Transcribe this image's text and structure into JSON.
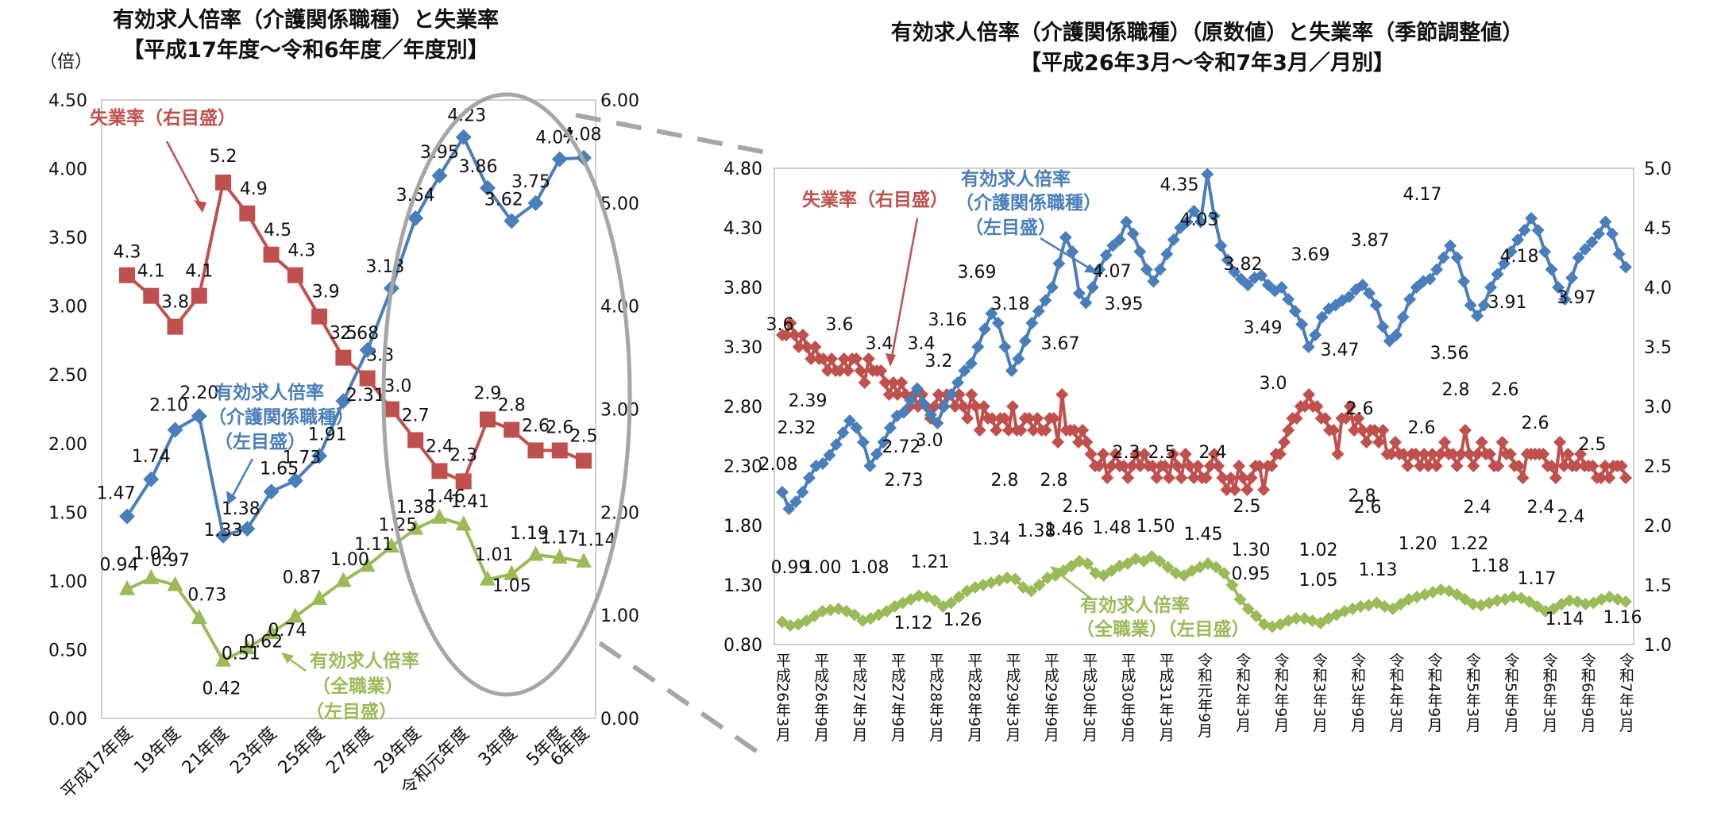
{
  "colors": {
    "unemployment": "#c0504d",
    "care": "#4a7ebb",
    "all": "#9bbb59",
    "ellipse": "#a6a6a6"
  },
  "chart_data": [
    {
      "type": "line",
      "title": [
        "有効求人倍率（介護関係職種）と失業率",
        "【平成17年度～令和6年度／年度別】"
      ],
      "left_axis_unit": "（倍）",
      "y_left": {
        "min": 0,
        "max": 4.5,
        "ticks": [
          "0.00",
          "0.50",
          "1.00",
          "1.50",
          "2.00",
          "2.50",
          "3.00",
          "3.50",
          "4.00",
          "4.50"
        ]
      },
      "y_right": {
        "min": 0,
        "max": 6,
        "ticks": [
          "0.00",
          "1.00",
          "2.00",
          "3.00",
          "4.00",
          "5.00",
          "6.00"
        ]
      },
      "x_labels": [
        "平成17年度",
        "19年度",
        "21年度",
        "23年度",
        "25年度",
        "27年度",
        "29年度",
        "令和元年度",
        "3年度",
        "5年度",
        "6年度"
      ],
      "series": [
        {
          "name": "失業率",
          "axis": "right",
          "values": [
            4.3,
            4.1,
            3.8,
            4.1,
            5.2,
            4.9,
            4.5,
            4.3,
            3.9,
            3.5,
            3.3,
            3.0,
            2.7,
            2.4,
            2.3,
            2.9,
            2.8,
            2.6,
            2.6,
            2.5
          ],
          "labels": [
            "4.3",
            "4.1",
            "3.8",
            "4.1",
            "5.2",
            "4.9",
            "4.5",
            "4.3",
            "3.9",
            "3.5",
            "3.3",
            "3.0",
            "2.7",
            "2.4",
            "2.3",
            "2.9",
            "2.8",
            "2.6",
            "2.6",
            "2.5"
          ]
        },
        {
          "name": "有効求人倍率（介護関係職種）",
          "axis": "left",
          "values": [
            1.47,
            1.74,
            2.1,
            2.2,
            1.33,
            1.38,
            1.65,
            1.73,
            1.91,
            2.31,
            2.68,
            3.13,
            3.64,
            3.95,
            4.23,
            3.86,
            3.62,
            3.75,
            4.07,
            4.08
          ],
          "labels": [
            "1.47",
            "1.74",
            "2.10",
            "2.20",
            "1.33",
            "1.38",
            "1.65",
            "1.73",
            "1.91",
            "2.31",
            "2.68",
            "3.13",
            "3.64",
            "3.95",
            "4.23",
            "3.86",
            "3.62",
            "3.75",
            "4.07",
            "4.08"
          ]
        },
        {
          "name": "有効求人倍率（全職業）",
          "axis": "left",
          "values": [
            0.94,
            1.02,
            0.97,
            0.73,
            0.42,
            0.51,
            0.62,
            0.74,
            0.87,
            1.0,
            1.11,
            1.25,
            1.38,
            1.46,
            1.41,
            1.01,
            1.05,
            1.19,
            1.17,
            1.14
          ],
          "labels": [
            "0.94",
            "1.02",
            "0.97",
            "0.73",
            "0.42",
            "0.51",
            "0.62",
            "0.74",
            "0.87",
            "1.00",
            "1.11",
            "1.25",
            "1.38",
            "1.46",
            "1.41",
            "1.01",
            "1.05",
            "1.19",
            "1.17",
            "1.14"
          ]
        }
      ],
      "callouts": {
        "unemployment": "失業率（右目盛）",
        "care": [
          "有効求人倍率",
          "（介護関係職種）",
          "（左目盛）"
        ],
        "all": [
          "有効求人倍率",
          "（全職業）",
          "（左目盛）"
        ]
      }
    },
    {
      "type": "line",
      "title": [
        "有効求人倍率（介護関係職種）（原数値）と失業率（季節調整値）",
        "【平成26年3月～令和7年3月／月別】"
      ],
      "y_left": {
        "min": 0.8,
        "max": 4.8,
        "ticks": [
          "0.80",
          "1.30",
          "1.80",
          "2.30",
          "2.80",
          "3.30",
          "3.80",
          "4.30",
          "4.80"
        ]
      },
      "y_right": {
        "min": 1.0,
        "max": 5.0,
        "ticks": [
          "1.0",
          "1.5",
          "2.0",
          "2.5",
          "3.0",
          "3.5",
          "4.0",
          "4.5",
          "5.0"
        ]
      },
      "x_labels": [
        "平成26年3月",
        "平成26年9月",
        "平成27年3月",
        "平成27年9月",
        "平成28年3月",
        "平成28年9月",
        "平成29年3月",
        "平成29年9月",
        "平成30年3月",
        "平成30年9月",
        "平成31年3月",
        "令和元年9月",
        "令和2年3月",
        "令和2年9月",
        "令和3年3月",
        "令和3年9月",
        "令和4年3月",
        "令和4年9月",
        "令和5年3月",
        "令和5年9月",
        "令和6年3月",
        "令和6年9月",
        "令和7年3月"
      ],
      "series": [
        {
          "name": "失業率",
          "axis": "right",
          "values": [
            3.6,
            3.6,
            3.7,
            3.6,
            3.5,
            3.6,
            3.5,
            3.4,
            3.5,
            3.4,
            3.4,
            3.3,
            3.4,
            3.3,
            3.3,
            3.4,
            3.3,
            3.4,
            3.4,
            3.3,
            3.2,
            3.4,
            3.3,
            3.3,
            3.3,
            3.2,
            3.1,
            3.2,
            3.1,
            3.2,
            3.1,
            3.0,
            3.1,
            3.0,
            3.1,
            3.0,
            2.9,
            3.0,
            3.1,
            3.0,
            3.1,
            3.1,
            3.0,
            3.1,
            3.0,
            2.9,
            3.1,
            3.0,
            2.8,
            3.0,
            2.9,
            2.9,
            2.8,
            2.9,
            2.9,
            2.8,
            3.0,
            2.8,
            2.8,
            2.9,
            2.9,
            2.8,
            2.9,
            2.8,
            2.8,
            2.9,
            2.9,
            2.7,
            3.1,
            2.8,
            2.8,
            2.8,
            2.7,
            2.8,
            2.7,
            2.6,
            2.5,
            2.5,
            2.6,
            2.4,
            2.5,
            2.6,
            2.5,
            2.5,
            2.4,
            2.5,
            2.6,
            2.5,
            2.6,
            2.5,
            2.5,
            2.4,
            2.5,
            2.5,
            2.4,
            2.6,
            2.5,
            2.4,
            2.6,
            2.5,
            2.4,
            2.5,
            2.4,
            2.4,
            2.5,
            2.6,
            2.5,
            2.4,
            2.3,
            2.4,
            2.3,
            2.5,
            2.4,
            2.3,
            2.4,
            2.5,
            2.5,
            2.3,
            2.5,
            2.5,
            2.6,
            2.6,
            2.7,
            2.8,
            2.9,
            2.9,
            3.0,
            3.0,
            3.1,
            3.0,
            3.0,
            2.9,
            2.9,
            2.8,
            2.8,
            2.6,
            2.9,
            2.9,
            3.0,
            2.8,
            2.9,
            2.8,
            2.7,
            2.8,
            2.8,
            2.7,
            2.8,
            2.6,
            2.6,
            2.7,
            2.6,
            2.6,
            2.5,
            2.6,
            2.6,
            2.5,
            2.6,
            2.5,
            2.6,
            2.5,
            2.6,
            2.7,
            2.6,
            2.6,
            2.5,
            2.6,
            2.8,
            2.6,
            2.5,
            2.6,
            2.7,
            2.6,
            2.6,
            2.5,
            2.5,
            2.7,
            2.6,
            2.6,
            2.5,
            2.5,
            2.4,
            2.6,
            2.6,
            2.6,
            2.6,
            2.6,
            2.5,
            2.5,
            2.4,
            2.7,
            2.5,
            2.6,
            2.5,
            2.5,
            2.6,
            2.5,
            2.5,
            2.5,
            2.4,
            2.4,
            2.5,
            2.4,
            2.5,
            2.5,
            2.5,
            2.4
          ],
          "annotations": [
            "3.6",
            "3.6",
            "3.4",
            "3.4",
            "3.2",
            "3.0",
            "2.8",
            "2.8",
            "2.5",
            "2.3",
            "2.5",
            "2.4",
            "2.5",
            "3.0",
            "2.8",
            "2.6",
            "2.6",
            "2.6",
            "2.8",
            "2.6",
            "2.4",
            "2.4",
            "2.6",
            "2.5",
            "2.4"
          ]
        },
        {
          "name": "有効求人倍率（介護関係職種）",
          "axis": "left",
          "values": [
            2.08,
            1.94,
            2.0,
            2.08,
            2.2,
            2.3,
            2.32,
            2.39,
            2.48,
            2.58,
            2.68,
            2.62,
            2.5,
            2.3,
            2.4,
            2.5,
            2.62,
            2.72,
            2.75,
            2.85,
            2.95,
            2.82,
            2.73,
            2.66,
            2.8,
            2.9,
            3.0,
            3.1,
            3.16,
            3.3,
            3.45,
            3.58,
            3.5,
            3.3,
            3.1,
            3.2,
            3.35,
            3.5,
            3.6,
            3.69,
            3.8,
            4.0,
            4.22,
            4.1,
            3.75,
            3.67,
            3.8,
            3.95,
            4.07,
            4.15,
            4.2,
            4.35,
            4.25,
            4.1,
            3.95,
            3.85,
            3.95,
            4.08,
            4.2,
            4.3,
            4.35,
            4.44,
            4.35,
            4.75,
            4.4,
            4.15,
            4.03,
            3.93,
            3.87,
            3.82,
            3.88,
            3.9,
            3.82,
            3.77,
            3.8,
            3.7,
            3.6,
            3.49,
            3.3,
            3.4,
            3.55,
            3.62,
            3.65,
            3.69,
            3.72,
            3.78,
            3.82,
            3.75,
            3.65,
            3.47,
            3.35,
            3.4,
            3.55,
            3.7,
            3.8,
            3.85,
            3.87,
            3.95,
            4.05,
            4.15,
            4.05,
            3.85,
            3.65,
            3.56,
            3.65,
            3.8,
            3.91,
            4.0,
            4.1,
            4.2,
            4.28,
            4.38,
            4.28,
            4.1,
            3.95,
            3.8,
            3.7,
            3.88,
            4.05,
            4.12,
            4.18,
            4.25,
            4.35,
            4.25,
            4.08,
            3.97
          ],
          "annotations": [
            "2.08",
            "2.32",
            "2.39",
            "2.72",
            "2.73",
            "3.16",
            "3.18",
            "3.69",
            "3.67",
            "4.07",
            "3.95",
            "4.35",
            "4.03",
            "3.82",
            "3.49",
            "3.69",
            "3.47",
            "3.87",
            "3.56",
            "4.17",
            "3.91",
            "4.18",
            "3.97"
          ]
        },
        {
          "name": "有効求人倍率（全職業）",
          "axis": "left",
          "values": [
            0.99,
            0.96,
            0.97,
            1.0,
            1.04,
            1.08,
            1.09,
            1.1,
            1.08,
            1.05,
            1.0,
            1.02,
            1.05,
            1.08,
            1.12,
            1.15,
            1.18,
            1.21,
            1.2,
            1.17,
            1.12,
            1.15,
            1.2,
            1.25,
            1.28,
            1.3,
            1.32,
            1.34,
            1.36,
            1.35,
            1.28,
            1.25,
            1.3,
            1.36,
            1.38,
            1.42,
            1.46,
            1.5,
            1.48,
            1.4,
            1.38,
            1.42,
            1.46,
            1.48,
            1.52,
            1.5,
            1.54,
            1.5,
            1.45,
            1.4,
            1.38,
            1.42,
            1.45,
            1.48,
            1.45,
            1.4,
            1.3,
            1.18,
            1.1,
            1.04,
            0.97,
            0.95,
            0.97,
            1.0,
            1.02,
            1.02,
            1.0,
            0.98,
            1.02,
            1.05,
            1.08,
            1.1,
            1.12,
            1.13,
            1.15,
            1.12,
            1.1,
            1.14,
            1.18,
            1.2,
            1.22,
            1.24,
            1.26,
            1.25,
            1.22,
            1.18,
            1.14,
            1.13,
            1.15,
            1.17,
            1.18,
            1.2,
            1.19,
            1.16,
            1.12,
            1.08,
            1.1,
            1.14,
            1.17,
            1.16,
            1.14,
            1.15,
            1.18,
            1.2,
            1.18,
            1.16
          ],
          "annotations": [
            "0.99",
            "1.00",
            "1.08",
            "1.12",
            "1.21",
            "1.26",
            "1.34",
            "1.38",
            "1.46",
            "1.48",
            "1.50",
            "1.45",
            "1.30",
            "0.95",
            "1.02",
            "1.05",
            "1.13",
            "1.20",
            "1.22",
            "1.18",
            "1.17",
            "1.14",
            "1.16"
          ]
        }
      ],
      "callouts": {
        "unemployment": "失業率（右目盛）",
        "care": [
          "有効求人倍率",
          "（介護関係職種）",
          "（左目盛）"
        ],
        "all": [
          "有効求人倍率",
          "（全職業）（左目盛）"
        ]
      }
    }
  ]
}
